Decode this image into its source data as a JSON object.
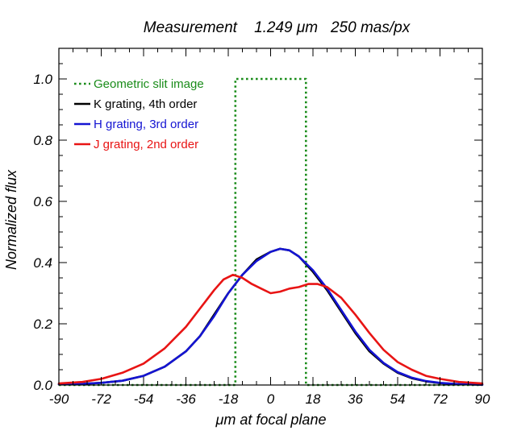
{
  "chart_data": {
    "type": "line",
    "title": "Measurement    1.249 μm   250 mas/px",
    "xlabel": "μm at focal plane",
    "ylabel": "Normalized flux",
    "xlim": [
      -90,
      90
    ],
    "ylim": [
      0,
      1.1
    ],
    "xticks": [
      -90,
      -72,
      -54,
      -36,
      -18,
      0,
      18,
      36,
      54,
      72,
      90
    ],
    "xtick_labels": [
      "-90",
      "-72",
      "-54",
      "-36",
      "-18",
      "0",
      "18",
      "36",
      "54",
      "72",
      "90"
    ],
    "yticks": [
      0.0,
      0.2,
      0.4,
      0.6,
      0.8,
      1.0
    ],
    "ytick_labels": [
      "0.0",
      "0.2",
      "0.4",
      "0.6",
      "0.8",
      "1.0"
    ],
    "grid": false,
    "legend_position": "top-left",
    "series": [
      {
        "name": "Geometric slit image",
        "color": "#1a8c1a",
        "style": "dotted",
        "points": [
          [
            -90,
            0
          ],
          [
            -15,
            0
          ],
          [
            -15,
            1.0
          ],
          [
            15,
            1.0
          ],
          [
            15,
            0
          ],
          [
            90,
            0
          ]
        ]
      },
      {
        "name": "K grating, 4th order",
        "color": "#000000",
        "style": "solid",
        "points": [
          [
            -90,
            0.002
          ],
          [
            -80,
            0.004
          ],
          [
            -72,
            0.007
          ],
          [
            -63,
            0.014
          ],
          [
            -54,
            0.03
          ],
          [
            -45,
            0.06
          ],
          [
            -36,
            0.11
          ],
          [
            -30,
            0.16
          ],
          [
            -24,
            0.23
          ],
          [
            -18,
            0.3
          ],
          [
            -12,
            0.36
          ],
          [
            -6,
            0.41
          ],
          [
            0,
            0.435
          ],
          [
            4,
            0.445
          ],
          [
            8,
            0.44
          ],
          [
            12,
            0.42
          ],
          [
            18,
            0.37
          ],
          [
            24,
            0.31
          ],
          [
            30,
            0.24
          ],
          [
            36,
            0.17
          ],
          [
            42,
            0.11
          ],
          [
            48,
            0.07
          ],
          [
            54,
            0.04
          ],
          [
            60,
            0.022
          ],
          [
            66,
            0.012
          ],
          [
            72,
            0.006
          ],
          [
            80,
            0.003
          ],
          [
            90,
            0.001
          ]
        ]
      },
      {
        "name": "H grating, 3rd order",
        "color": "#1414d2",
        "style": "solid",
        "points": [
          [
            -90,
            0.002
          ],
          [
            -80,
            0.004
          ],
          [
            -72,
            0.007
          ],
          [
            -63,
            0.014
          ],
          [
            -54,
            0.03
          ],
          [
            -45,
            0.06
          ],
          [
            -36,
            0.11
          ],
          [
            -30,
            0.16
          ],
          [
            -24,
            0.225
          ],
          [
            -18,
            0.3
          ],
          [
            -12,
            0.36
          ],
          [
            -6,
            0.405
          ],
          [
            0,
            0.435
          ],
          [
            4,
            0.445
          ],
          [
            8,
            0.44
          ],
          [
            12,
            0.42
          ],
          [
            18,
            0.375
          ],
          [
            24,
            0.315
          ],
          [
            30,
            0.245
          ],
          [
            36,
            0.175
          ],
          [
            42,
            0.115
          ],
          [
            48,
            0.072
          ],
          [
            54,
            0.042
          ],
          [
            60,
            0.024
          ],
          [
            66,
            0.013
          ],
          [
            72,
            0.007
          ],
          [
            80,
            0.003
          ],
          [
            90,
            0.001
          ]
        ]
      },
      {
        "name": "J grating, 2nd order",
        "color": "#e81414",
        "style": "solid",
        "points": [
          [
            -90,
            0.005
          ],
          [
            -80,
            0.01
          ],
          [
            -72,
            0.02
          ],
          [
            -63,
            0.04
          ],
          [
            -54,
            0.07
          ],
          [
            -45,
            0.12
          ],
          [
            -36,
            0.19
          ],
          [
            -30,
            0.25
          ],
          [
            -24,
            0.31
          ],
          [
            -20,
            0.345
          ],
          [
            -16,
            0.36
          ],
          [
            -12,
            0.35
          ],
          [
            -8,
            0.33
          ],
          [
            -4,
            0.315
          ],
          [
            0,
            0.3
          ],
          [
            4,
            0.305
          ],
          [
            8,
            0.315
          ],
          [
            12,
            0.32
          ],
          [
            16,
            0.33
          ],
          [
            20,
            0.33
          ],
          [
            24,
            0.32
          ],
          [
            30,
            0.285
          ],
          [
            36,
            0.23
          ],
          [
            42,
            0.17
          ],
          [
            48,
            0.115
          ],
          [
            54,
            0.075
          ],
          [
            60,
            0.05
          ],
          [
            66,
            0.03
          ],
          [
            72,
            0.02
          ],
          [
            80,
            0.01
          ],
          [
            90,
            0.005
          ]
        ]
      }
    ]
  }
}
